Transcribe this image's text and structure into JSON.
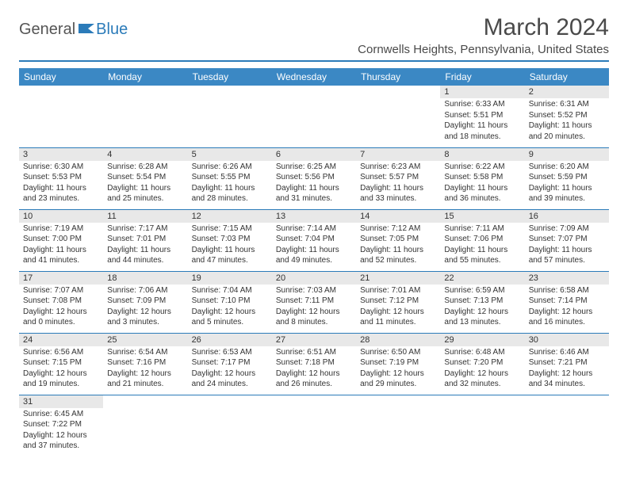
{
  "logo": {
    "text1": "General",
    "text2": "Blue"
  },
  "title": "March 2024",
  "location": "Cornwells Heights, Pennsylvania, United States",
  "colors": {
    "header_bg": "#3b88c4",
    "accent": "#2b7bb9",
    "daynum_bg": "#e8e8e8",
    "text": "#333333",
    "logo_gray": "#555555"
  },
  "weekdays": [
    "Sunday",
    "Monday",
    "Tuesday",
    "Wednesday",
    "Thursday",
    "Friday",
    "Saturday"
  ],
  "weeks": [
    [
      null,
      null,
      null,
      null,
      null,
      {
        "n": "1",
        "sr": "6:33 AM",
        "ss": "5:51 PM",
        "dl": "11 hours and 18 minutes."
      },
      {
        "n": "2",
        "sr": "6:31 AM",
        "ss": "5:52 PM",
        "dl": "11 hours and 20 minutes."
      }
    ],
    [
      {
        "n": "3",
        "sr": "6:30 AM",
        "ss": "5:53 PM",
        "dl": "11 hours and 23 minutes."
      },
      {
        "n": "4",
        "sr": "6:28 AM",
        "ss": "5:54 PM",
        "dl": "11 hours and 25 minutes."
      },
      {
        "n": "5",
        "sr": "6:26 AM",
        "ss": "5:55 PM",
        "dl": "11 hours and 28 minutes."
      },
      {
        "n": "6",
        "sr": "6:25 AM",
        "ss": "5:56 PM",
        "dl": "11 hours and 31 minutes."
      },
      {
        "n": "7",
        "sr": "6:23 AM",
        "ss": "5:57 PM",
        "dl": "11 hours and 33 minutes."
      },
      {
        "n": "8",
        "sr": "6:22 AM",
        "ss": "5:58 PM",
        "dl": "11 hours and 36 minutes."
      },
      {
        "n": "9",
        "sr": "6:20 AM",
        "ss": "5:59 PM",
        "dl": "11 hours and 39 minutes."
      }
    ],
    [
      {
        "n": "10",
        "sr": "7:19 AM",
        "ss": "7:00 PM",
        "dl": "11 hours and 41 minutes."
      },
      {
        "n": "11",
        "sr": "7:17 AM",
        "ss": "7:01 PM",
        "dl": "11 hours and 44 minutes."
      },
      {
        "n": "12",
        "sr": "7:15 AM",
        "ss": "7:03 PM",
        "dl": "11 hours and 47 minutes."
      },
      {
        "n": "13",
        "sr": "7:14 AM",
        "ss": "7:04 PM",
        "dl": "11 hours and 49 minutes."
      },
      {
        "n": "14",
        "sr": "7:12 AM",
        "ss": "7:05 PM",
        "dl": "11 hours and 52 minutes."
      },
      {
        "n": "15",
        "sr": "7:11 AM",
        "ss": "7:06 PM",
        "dl": "11 hours and 55 minutes."
      },
      {
        "n": "16",
        "sr": "7:09 AM",
        "ss": "7:07 PM",
        "dl": "11 hours and 57 minutes."
      }
    ],
    [
      {
        "n": "17",
        "sr": "7:07 AM",
        "ss": "7:08 PM",
        "dl": "12 hours and 0 minutes."
      },
      {
        "n": "18",
        "sr": "7:06 AM",
        "ss": "7:09 PM",
        "dl": "12 hours and 3 minutes."
      },
      {
        "n": "19",
        "sr": "7:04 AM",
        "ss": "7:10 PM",
        "dl": "12 hours and 5 minutes."
      },
      {
        "n": "20",
        "sr": "7:03 AM",
        "ss": "7:11 PM",
        "dl": "12 hours and 8 minutes."
      },
      {
        "n": "21",
        "sr": "7:01 AM",
        "ss": "7:12 PM",
        "dl": "12 hours and 11 minutes."
      },
      {
        "n": "22",
        "sr": "6:59 AM",
        "ss": "7:13 PM",
        "dl": "12 hours and 13 minutes."
      },
      {
        "n": "23",
        "sr": "6:58 AM",
        "ss": "7:14 PM",
        "dl": "12 hours and 16 minutes."
      }
    ],
    [
      {
        "n": "24",
        "sr": "6:56 AM",
        "ss": "7:15 PM",
        "dl": "12 hours and 19 minutes."
      },
      {
        "n": "25",
        "sr": "6:54 AM",
        "ss": "7:16 PM",
        "dl": "12 hours and 21 minutes."
      },
      {
        "n": "26",
        "sr": "6:53 AM",
        "ss": "7:17 PM",
        "dl": "12 hours and 24 minutes."
      },
      {
        "n": "27",
        "sr": "6:51 AM",
        "ss": "7:18 PM",
        "dl": "12 hours and 26 minutes."
      },
      {
        "n": "28",
        "sr": "6:50 AM",
        "ss": "7:19 PM",
        "dl": "12 hours and 29 minutes."
      },
      {
        "n": "29",
        "sr": "6:48 AM",
        "ss": "7:20 PM",
        "dl": "12 hours and 32 minutes."
      },
      {
        "n": "30",
        "sr": "6:46 AM",
        "ss": "7:21 PM",
        "dl": "12 hours and 34 minutes."
      }
    ],
    [
      {
        "n": "31",
        "sr": "6:45 AM",
        "ss": "7:22 PM",
        "dl": "12 hours and 37 minutes."
      },
      null,
      null,
      null,
      null,
      null,
      null
    ]
  ],
  "labels": {
    "sunrise": "Sunrise:",
    "sunset": "Sunset:",
    "daylight": "Daylight:"
  }
}
